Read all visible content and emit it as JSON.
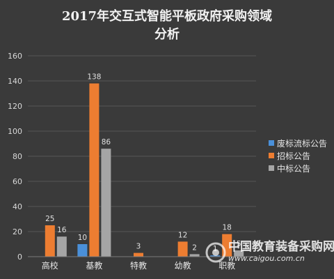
{
  "chart_data": {
    "type": "bar",
    "title_lines": [
      "2017年交互式智能平板政府采购领域",
      "分析"
    ],
    "categories": [
      "高校",
      "基教",
      "特教",
      "幼教",
      "职教"
    ],
    "series": [
      {
        "name": "废标流标公告",
        "color": "#4a90d9",
        "values": [
          null,
          10,
          null,
          null,
          1
        ]
      },
      {
        "name": "招标公告",
        "color": "#ed7d31",
        "values": [
          25,
          138,
          3,
          12,
          18
        ]
      },
      {
        "name": "中标公告",
        "color": "#a5a5a5",
        "values": [
          16,
          86,
          null,
          2,
          5
        ]
      }
    ],
    "yticks": [
      0,
      20,
      40,
      60,
      80,
      100,
      120,
      140,
      160
    ],
    "ylim": [
      0,
      160
    ],
    "grid": true,
    "legend_position": "right"
  },
  "watermark": {
    "text": "中国教育装备采购网",
    "url": "www.caigou.com.cn"
  }
}
